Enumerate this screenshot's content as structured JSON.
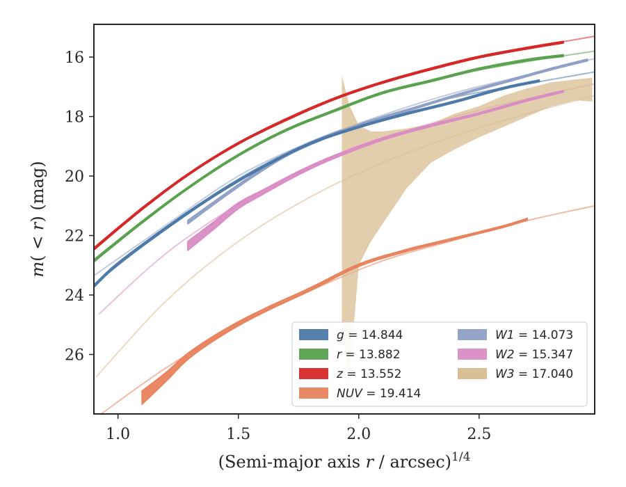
{
  "chart_data": {
    "type": "line",
    "xlabel": "(Semi-major axis r / arcsec)",
    "xlabel_parts": {
      "pre": "(Semi-major axis ",
      "var": "r",
      "post": " / arcsec)",
      "sup": "1/4"
    },
    "ylabel": "m(< r) (mag)",
    "ylabel_parts": {
      "m": "m",
      "mid": "( < ",
      "r": "r",
      "post": ") (mag)"
    },
    "xlim": [
      0.9,
      2.98
    ],
    "ylim": [
      28.0,
      14.9
    ],
    "y_inverted": true,
    "xticks": [
      1.0,
      1.5,
      2.0,
      2.5
    ],
    "xtick_labels": [
      "1.0",
      "1.5",
      "2.0",
      "2.5"
    ],
    "yticks": [
      16,
      18,
      20,
      22,
      24,
      26
    ],
    "ytick_labels": [
      "16",
      "18",
      "20",
      "22",
      "24",
      "26"
    ],
    "grid": false,
    "legend_position": "lower-right",
    "series": [
      {
        "name": "g",
        "legend_var": "g",
        "legend_value": "= 14.844",
        "color": "#4c78a8",
        "fit_x": [
          0.9,
          1.2,
          1.5,
          1.8,
          2.1,
          2.4,
          2.7,
          2.98
        ],
        "fit_y": [
          23.65,
          21.75,
          20.1,
          18.85,
          18.0,
          17.35,
          16.9,
          16.5
        ],
        "band_x": [
          0.9,
          1.0,
          1.2,
          1.4,
          1.6,
          1.8,
          2.0,
          2.2,
          2.4,
          2.6,
          2.75
        ],
        "band_y": [
          23.7,
          22.95,
          21.75,
          20.65,
          19.7,
          18.9,
          18.35,
          17.9,
          17.5,
          17.05,
          16.8
        ],
        "band_width": [
          0.08,
          0.08,
          0.08,
          0.07,
          0.06,
          0.06,
          0.06,
          0.06,
          0.06,
          0.06,
          0.06
        ]
      },
      {
        "name": "r",
        "legend_var": "r",
        "legend_value": "= 13.882",
        "color": "#59a14f",
        "fit_x": [
          0.9,
          1.2,
          1.5,
          1.8,
          2.1,
          2.4,
          2.7,
          2.98
        ],
        "fit_y": [
          22.85,
          20.95,
          19.3,
          18.1,
          17.2,
          16.6,
          16.15,
          15.8
        ],
        "band_x": [
          0.9,
          1.1,
          1.3,
          1.5,
          1.7,
          1.9,
          2.1,
          2.3,
          2.5,
          2.7,
          2.85
        ],
        "band_y": [
          22.85,
          21.55,
          20.35,
          19.3,
          18.45,
          17.8,
          17.2,
          16.8,
          16.4,
          16.1,
          15.95
        ],
        "band_width": [
          0.08,
          0.07,
          0.06,
          0.06,
          0.06,
          0.06,
          0.06,
          0.06,
          0.06,
          0.06,
          0.06
        ]
      },
      {
        "name": "z",
        "legend_var": "z",
        "legend_value": "= 13.552",
        "color": "#d62728",
        "fit_x": [
          0.9,
          1.2,
          1.5,
          1.8,
          2.1,
          2.4,
          2.7,
          2.98
        ],
        "fit_y": [
          22.45,
          20.5,
          18.9,
          17.7,
          16.85,
          16.2,
          15.7,
          15.3
        ],
        "band_x": [
          0.9,
          1.1,
          1.3,
          1.5,
          1.7,
          1.9,
          2.1,
          2.3,
          2.5,
          2.7,
          2.85
        ],
        "band_y": [
          22.45,
          21.1,
          19.9,
          18.9,
          18.1,
          17.4,
          16.85,
          16.4,
          16.0,
          15.7,
          15.5
        ],
        "band_width": [
          0.08,
          0.07,
          0.06,
          0.06,
          0.06,
          0.06,
          0.06,
          0.06,
          0.06,
          0.06,
          0.06
        ]
      },
      {
        "name": "NUV",
        "legend_var": "NUV",
        "legend_value": "= 19.414",
        "color": "#e8825c",
        "fit_x": [
          0.93,
          1.2,
          1.5,
          1.8,
          2.1,
          2.4,
          2.7,
          2.98
        ],
        "fit_y": [
          28.0,
          26.45,
          25.0,
          23.85,
          22.85,
          22.15,
          21.5,
          21.0
        ],
        "band_x": [
          1.1,
          1.2,
          1.3,
          1.45,
          1.6,
          1.8,
          2.0,
          2.2,
          2.4,
          2.6,
          2.7
        ],
        "band_y": [
          27.45,
          26.75,
          26.0,
          25.2,
          24.55,
          23.8,
          23.0,
          22.5,
          22.1,
          21.7,
          21.45
        ],
        "band_width": [
          0.45,
          0.3,
          0.2,
          0.15,
          0.12,
          0.1,
          0.08,
          0.07,
          0.06,
          0.06,
          0.06
        ]
      },
      {
        "name": "W1",
        "legend_var": "W1",
        "legend_value": "= 14.073",
        "color": "#8f9fc6",
        "fit_x": [
          0.9,
          1.2,
          1.5,
          1.8,
          2.1,
          2.4,
          2.7,
          2.98
        ],
        "fit_y": [
          23.35,
          21.65,
          20.0,
          18.85,
          17.95,
          17.2,
          16.6,
          16.05
        ],
        "band_x": [
          1.29,
          1.4,
          1.55,
          1.7,
          1.85,
          2.0,
          2.2,
          2.4,
          2.6,
          2.8,
          2.95
        ],
        "band_y": [
          21.55,
          20.9,
          20.05,
          19.3,
          18.75,
          18.3,
          17.8,
          17.3,
          16.85,
          16.4,
          16.1
        ],
        "band_width": [
          0.12,
          0.1,
          0.08,
          0.07,
          0.06,
          0.06,
          0.06,
          0.06,
          0.06,
          0.06,
          0.06
        ]
      },
      {
        "name": "W2",
        "legend_var": "W2",
        "legend_value": "= 15.347",
        "color": "#d98cc4",
        "fit_x": [
          0.92,
          1.2,
          1.5,
          1.8,
          2.1,
          2.4,
          2.7,
          2.98
        ],
        "fit_y": [
          24.65,
          22.6,
          20.95,
          19.7,
          18.75,
          18.0,
          17.4,
          16.9
        ],
        "band_x": [
          1.29,
          1.4,
          1.5,
          1.6,
          1.75,
          1.9,
          2.1,
          2.3,
          2.5,
          2.7,
          2.85
        ],
        "band_y": [
          22.35,
          21.65,
          21.0,
          20.55,
          19.9,
          19.35,
          18.75,
          18.3,
          17.9,
          17.45,
          17.15
        ],
        "band_width": [
          0.3,
          0.25,
          0.2,
          0.15,
          0.12,
          0.1,
          0.08,
          0.07,
          0.06,
          0.06,
          0.06
        ]
      },
      {
        "name": "W3",
        "legend_var": "W3",
        "legend_value": "= 17.040",
        "color": "#d8bc90",
        "fit_x": [
          0.91,
          1.2,
          1.5,
          1.8,
          2.1,
          2.4,
          2.7,
          2.98
        ],
        "fit_y": [
          26.75,
          24.2,
          22.2,
          20.7,
          19.55,
          18.65,
          17.9,
          17.3
        ],
        "band_x": [
          1.93,
          1.96,
          2.0,
          2.05,
          2.1,
          2.2,
          2.3,
          2.4,
          2.5,
          2.6,
          2.7,
          2.8,
          2.9,
          2.97
        ],
        "band_upper": [
          16.6,
          17.6,
          18.3,
          18.5,
          18.5,
          18.4,
          18.25,
          17.9,
          17.65,
          17.3,
          17.05,
          16.85,
          16.75,
          16.7
        ],
        "band_lower": [
          25.0,
          27.0,
          23.0,
          22.2,
          21.6,
          20.4,
          19.55,
          19.1,
          18.7,
          18.35,
          18.0,
          17.65,
          17.45,
          17.5
        ]
      }
    ]
  }
}
